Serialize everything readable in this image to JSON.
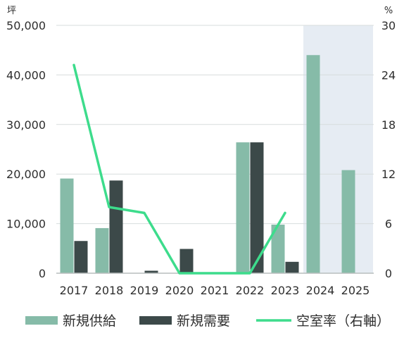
{
  "chart_data": {
    "type": "bar",
    "categories": [
      "2017",
      "2018",
      "2019",
      "2020",
      "2021",
      "2022",
      "2023",
      "2024",
      "2025"
    ],
    "series": [
      {
        "name": "新規供給",
        "type": "bar",
        "axis": "left",
        "color": "#86bba8",
        "values": [
          19100,
          9100,
          0,
          0,
          0,
          26400,
          9800,
          44000,
          20800
        ]
      },
      {
        "name": "新規需要",
        "type": "bar",
        "axis": "left",
        "color": "#3c4949",
        "values": [
          6500,
          18700,
          500,
          4900,
          0,
          26400,
          2300,
          0,
          0
        ]
      },
      {
        "name": "空室率（右軸）",
        "type": "line",
        "axis": "right",
        "color": "#3ddc8c",
        "values": [
          25.2,
          8.0,
          7.3,
          0.0,
          0.0,
          0.0,
          7.3,
          null,
          null
        ]
      }
    ],
    "y_left": {
      "unit": "坪",
      "min": 0,
      "max": 50000,
      "ticks": [
        "0",
        "10,000",
        "20,000",
        "30,000",
        "40,000",
        "50,000"
      ]
    },
    "y_right": {
      "unit": "%",
      "min": 0,
      "max": 30,
      "ticks": [
        "0",
        "6",
        "12",
        "18",
        "24",
        "30"
      ]
    },
    "shaded_categories": [
      "2024",
      "2025"
    ],
    "shade_color": "#e6ecf3",
    "grid": true,
    "legend_position": "bottom"
  }
}
